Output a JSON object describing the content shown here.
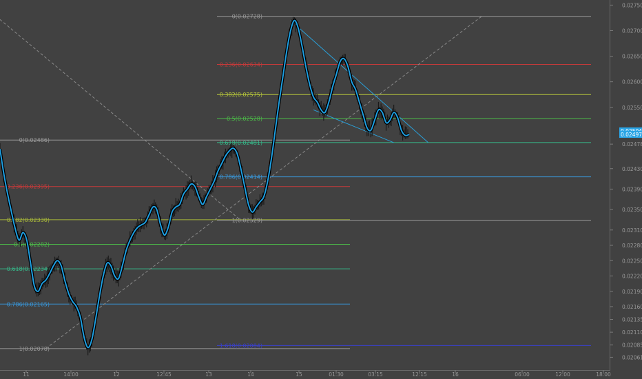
{
  "chart_data": {
    "type": "line",
    "title": "",
    "xlabel": "",
    "ylabel": "",
    "ylim": [
      0.0204,
      0.0276
    ],
    "grid": false,
    "legend": "none",
    "colors": {
      "background": "#414141",
      "price_line": "#1e9ee0",
      "price_shadow": "#000000",
      "candle": "#1a1a1a",
      "axis_text": "#9a9a9a",
      "price_tag": "#2aa5e6",
      "trendline": "#2a9fd8",
      "diagonal": "#8a8a8a"
    },
    "x_tick_labels": [
      "11",
      "14:00",
      "12",
      "12:45",
      "13",
      "14",
      "15",
      "01:30",
      "03:15",
      "12:15",
      "16",
      "06:00",
      "12:00",
      "18:00"
    ],
    "y_tick_labels": [
      "0.02750",
      "0.02700",
      "0.02650",
      "0.02600",
      "0.02550",
      "0.02478",
      "0.02430",
      "0.02390",
      "0.02350",
      "0.02310",
      "0.02280",
      "0.02250",
      "0.02220",
      "0.02190",
      "0.02160",
      "0.02135",
      "0.02110",
      "0.02085",
      "0.02061"
    ],
    "price_tags": [
      "0.02504",
      "0.02497"
    ],
    "fib_sets": [
      {
        "levels": [
          {
            "label": "0(0.02486)",
            "value": 0.02486,
            "color": "#9a9a9a"
          },
          {
            "label": "0.236(0.02395)",
            "value": 0.02395,
            "color": "#c43a3a"
          },
          {
            "label": "0.382(0.02330)",
            "value": 0.0233,
            "color": "#a8b83a"
          },
          {
            "label": "0.5(0.02282)",
            "value": 0.02282,
            "color": "#4cbf48"
          },
          {
            "label": "0.618(0.02234)",
            "value": 0.02234,
            "color": "#36b889"
          },
          {
            "label": "0.786(0.02165)",
            "value": 0.02165,
            "color": "#3996d8"
          },
          {
            "label": "1(0.02078)",
            "value": 0.02078,
            "color": "#9a9a9a"
          }
        ]
      },
      {
        "levels": [
          {
            "label": "0(0.02728)",
            "value": 0.02728,
            "color": "#9a9a9a"
          },
          {
            "label": "0.236(0.02634)",
            "value": 0.02634,
            "color": "#c43a3a"
          },
          {
            "label": "0.382(0.02575)",
            "value": 0.02575,
            "color": "#b8c83a"
          },
          {
            "label": "0.5(0.02528)",
            "value": 0.02528,
            "color": "#4cbf48"
          },
          {
            "label": "0.618(0.02481)",
            "value": 0.02481,
            "color": "#36b889"
          },
          {
            "label": "0.786(0.02414)",
            "value": 0.02414,
            "color": "#3996d8"
          },
          {
            "label": "1(0.02329)",
            "value": 0.02329,
            "color": "#9a9a9a"
          },
          {
            "label": "1.618(0.02084)",
            "value": 0.02084,
            "color": "#3a40c8"
          }
        ]
      }
    ],
    "series": [
      {
        "values": [
          0.02468,
          0.0242,
          0.0238,
          0.02345,
          0.02312,
          0.0229,
          0.02305,
          0.0229,
          0.02245,
          0.022,
          0.0219,
          0.02205,
          0.02212,
          0.02225,
          0.0224,
          0.0225,
          0.0224,
          0.0221,
          0.02185,
          0.0217,
          0.0216,
          0.0214,
          0.021,
          0.0208,
          0.02095,
          0.02135,
          0.0218,
          0.0222,
          0.02245,
          0.0224,
          0.0222,
          0.02215,
          0.0224,
          0.0227,
          0.0229,
          0.02305,
          0.02315,
          0.0232,
          0.02325,
          0.0234,
          0.02355,
          0.0235,
          0.0232,
          0.023,
          0.02315,
          0.02345,
          0.02355,
          0.0236,
          0.0238,
          0.0239,
          0.024,
          0.02395,
          0.02375,
          0.0236,
          0.02375,
          0.0239,
          0.02405,
          0.02425,
          0.0244,
          0.02455,
          0.02465,
          0.0247,
          0.0246,
          0.0243,
          0.02395,
          0.0236,
          0.02345,
          0.02355,
          0.02365,
          0.02375,
          0.02405,
          0.0245,
          0.02505,
          0.0256,
          0.0261,
          0.0266,
          0.027,
          0.0272,
          0.02705,
          0.0267,
          0.0263,
          0.02595,
          0.0257,
          0.0256,
          0.02545,
          0.0254,
          0.0256,
          0.0259,
          0.02615,
          0.0264,
          0.02645,
          0.0263,
          0.026,
          0.02585,
          0.0256,
          0.02535,
          0.0251,
          0.02505,
          0.02525,
          0.02545,
          0.0254,
          0.0252,
          0.02525,
          0.0254,
          0.0253,
          0.02505,
          0.02495,
          0.02497
        ]
      }
    ],
    "trendlines": [
      {
        "from": [
          76,
          0.0272
        ],
        "to": [
          112,
          0.02481
        ]
      },
      {
        "from": [
          82,
          0.02545
        ],
        "to": [
          103,
          0.02481
        ]
      }
    ],
    "diagonals": [
      {
        "from": [
          -1,
          0.02728
        ],
        "to": [
          63,
          0.02329
        ]
      },
      {
        "from": [
          12,
          0.02078
        ],
        "to": [
          126,
          0.02728
        ]
      }
    ]
  }
}
